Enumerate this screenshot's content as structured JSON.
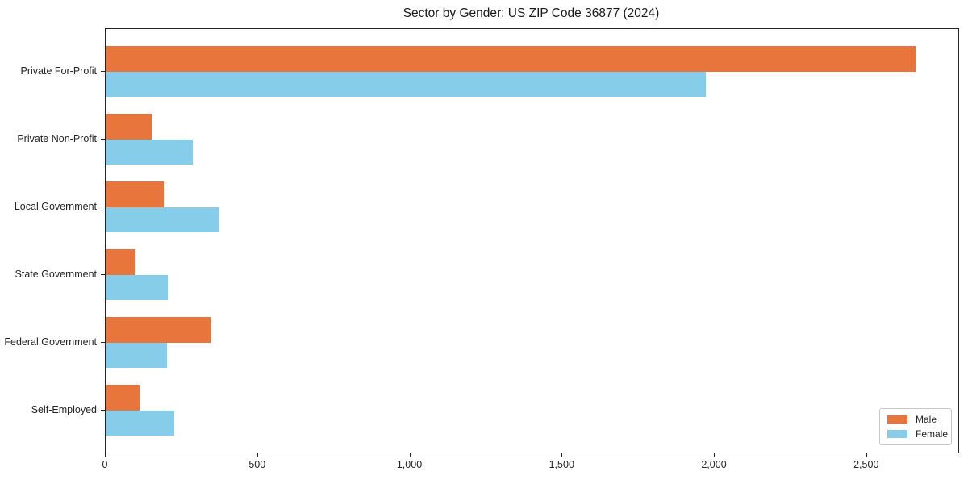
{
  "chart_data": {
    "type": "bar",
    "orientation": "horizontal",
    "title": "Sector by Gender: US ZIP Code 36877 (2024)",
    "categories": [
      "Private For-Profit",
      "Private Non-Profit",
      "Local Government",
      "State Government",
      "Federal Government",
      "Self-Employed"
    ],
    "series": [
      {
        "name": "Male",
        "color": "#e8763c",
        "values": [
          2660,
          150,
          190,
          95,
          345,
          110
        ]
      },
      {
        "name": "Female",
        "color": "#86cde9",
        "values": [
          1970,
          285,
          370,
          205,
          200,
          225
        ]
      }
    ],
    "xlabel": "",
    "ylabel": "",
    "xlim": [
      0,
      2800
    ],
    "xticks": [
      0,
      500,
      1000,
      1500,
      2000,
      2500
    ],
    "xtick_labels": [
      "0",
      "500",
      "1,000",
      "1,500",
      "2,000",
      "2,500"
    ],
    "grid": false,
    "legend_position": "lower right",
    "colors": {
      "male": "#e8763c",
      "female": "#86cde9",
      "spine": "#262626",
      "legend_border": "#c9c9c9"
    }
  }
}
